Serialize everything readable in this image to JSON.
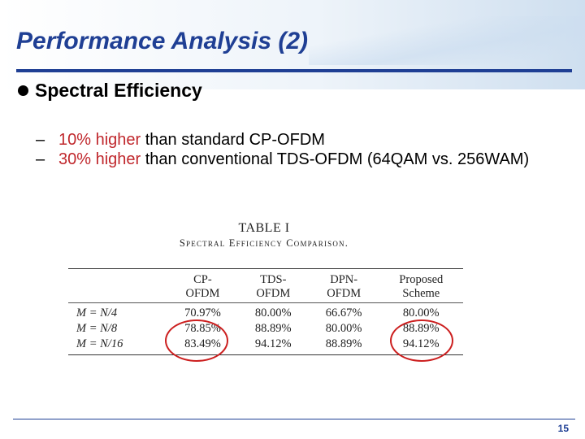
{
  "slide": {
    "title": "Performance Analysis (2)",
    "bullet": "Spectral Efficiency",
    "subitems": [
      {
        "dash": "–",
        "highlight": "10% higher",
        "rest": " than standard CP-OFDM"
      },
      {
        "dash": "–",
        "highlight": "30% higher",
        "rest": " than conventional TDS-OFDM (64QAM vs. 256WAM)"
      }
    ],
    "page_number": "15"
  },
  "table": {
    "caption_line1": "TABLE I",
    "caption_line2": "Spectral Efficiency Comparison.",
    "headers": [
      {
        "line1": "",
        "line2": ""
      },
      {
        "line1": "CP-",
        "line2": "OFDM"
      },
      {
        "line1": "TDS-",
        "line2": "OFDM"
      },
      {
        "line1": "DPN-",
        "line2": "OFDM"
      },
      {
        "line1": "Proposed",
        "line2": "Scheme"
      }
    ],
    "rows": [
      {
        "label": "M = N/4",
        "cells": [
          "70.97%",
          "80.00%",
          "66.67%",
          "80.00%"
        ]
      },
      {
        "label": "M = N/8",
        "cells": [
          "78.85%",
          "88.89%",
          "80.00%",
          "88.89%"
        ]
      },
      {
        "label": "M = N/16",
        "cells": [
          "83.49%",
          "94.12%",
          "88.89%",
          "94.12%"
        ]
      }
    ]
  },
  "colors": {
    "title_blue": "#1f3f94",
    "highlight_red": "#c0282d",
    "circle_red": "#cc1f1f"
  }
}
